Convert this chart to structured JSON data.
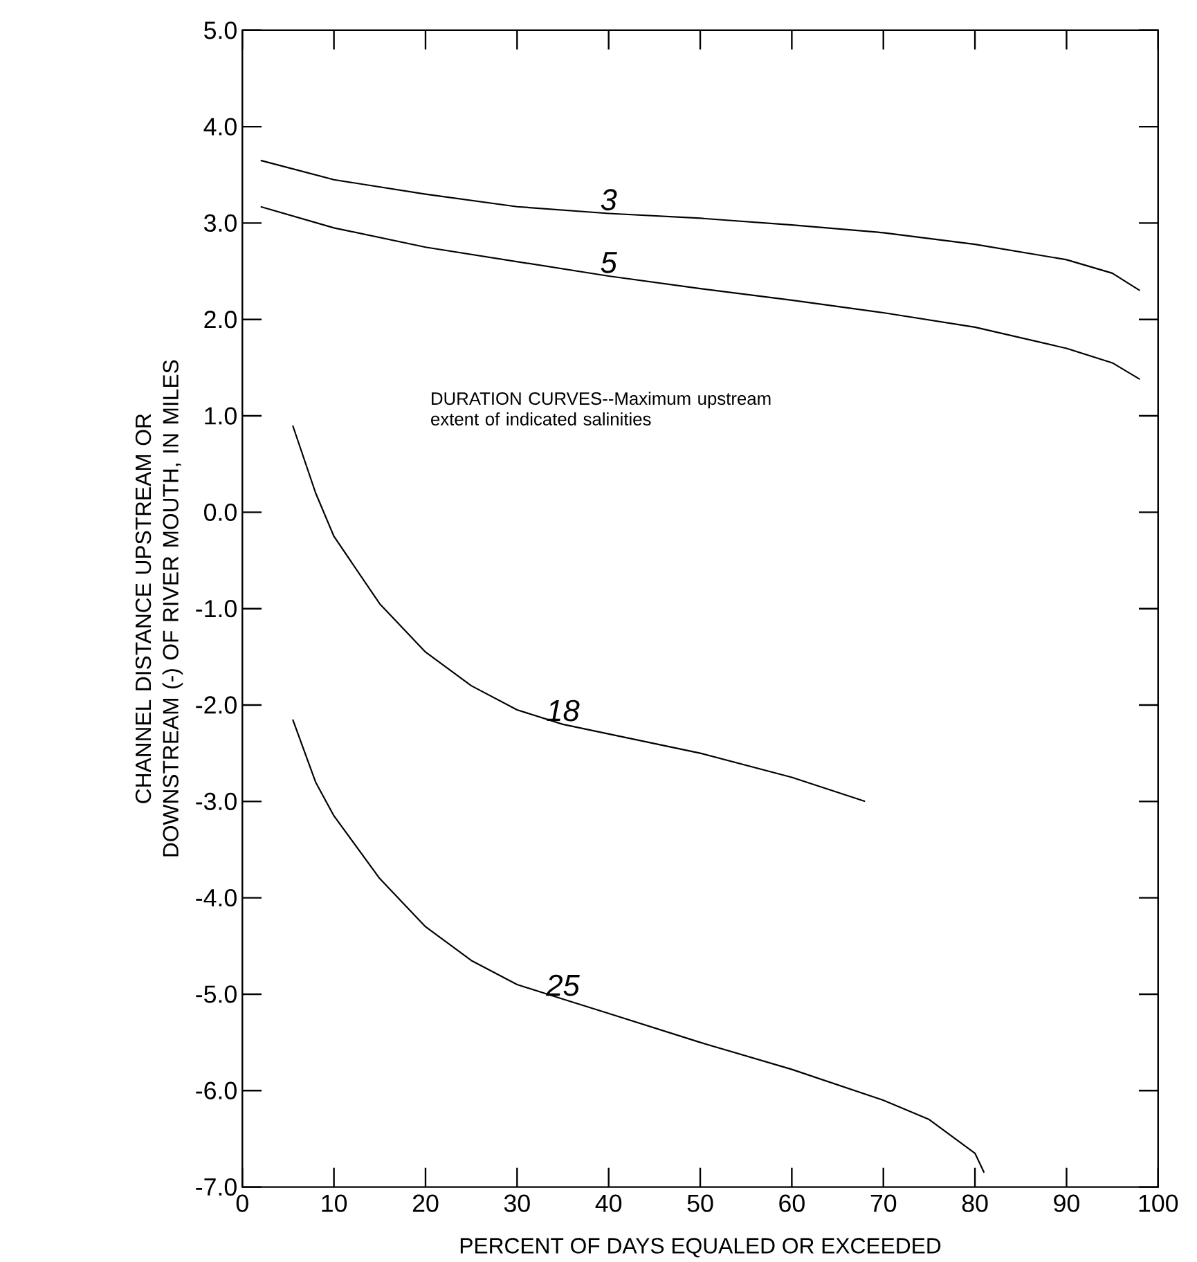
{
  "chart_data": {
    "type": "line",
    "xlabel": "PERCENT OF DAYS EQUALED OR EXCEEDED",
    "ylabel": "CHANNEL DISTANCE UPSTREAM OR DOWNSTREAM (-) OF RIVER MOUTH, IN MILES",
    "annotations": [
      "DURATION CURVES--Maximum upstream extent of indicated salinities"
    ],
    "xlim": [
      0,
      100
    ],
    "ylim": [
      -7,
      5
    ],
    "xticks": [
      0,
      10,
      20,
      30,
      40,
      50,
      60,
      70,
      80,
      90,
      100
    ],
    "yticks": [
      {
        "value": -7,
        "label": "-7.0"
      },
      {
        "value": -6,
        "label": "-6.0"
      },
      {
        "value": -5,
        "label": "-5.0"
      },
      {
        "value": -4,
        "label": "-4.0"
      },
      {
        "value": -3,
        "label": "-3.0"
      },
      {
        "value": -2,
        "label": "-2.0"
      },
      {
        "value": -1,
        "label": "-1.0"
      },
      {
        "value": 0,
        "label": "0.0"
      },
      {
        "value": 1,
        "label": "1.0"
      },
      {
        "value": 2,
        "label": "2.0"
      },
      {
        "value": 3,
        "label": "3.0"
      },
      {
        "value": 4,
        "label": "4.0"
      },
      {
        "value": 5,
        "label": "5.0"
      }
    ],
    "grid": false,
    "legend": false,
    "marker": "none",
    "line_style": "solid",
    "series": [
      {
        "name": "3",
        "color": "#000000",
        "x": [
          2,
          10,
          20,
          30,
          40,
          50,
          60,
          70,
          80,
          90,
          95,
          98
        ],
        "values": [
          3.65,
          3.45,
          3.3,
          3.17,
          3.1,
          3.05,
          2.98,
          2.9,
          2.78,
          2.62,
          2.48,
          2.3
        ]
      },
      {
        "name": "5",
        "color": "#000000",
        "x": [
          2,
          10,
          20,
          30,
          40,
          50,
          60,
          70,
          80,
          90,
          95,
          98
        ],
        "values": [
          3.17,
          2.95,
          2.75,
          2.6,
          2.45,
          2.32,
          2.2,
          2.07,
          1.92,
          1.7,
          1.55,
          1.38
        ]
      },
      {
        "name": "18",
        "color": "#000000",
        "x": [
          5.5,
          8,
          10,
          15,
          20,
          25,
          30,
          35,
          40,
          50,
          60,
          68
        ],
        "values": [
          0.9,
          0.2,
          -0.25,
          -0.95,
          -1.45,
          -1.8,
          -2.05,
          -2.2,
          -2.3,
          -2.5,
          -2.75,
          -3.0
        ]
      },
      {
        "name": "25",
        "color": "#000000",
        "x": [
          5.5,
          8,
          10,
          15,
          20,
          25,
          30,
          35,
          40,
          50,
          60,
          70,
          75,
          80,
          81
        ],
        "values": [
          -2.15,
          -2.8,
          -3.15,
          -3.8,
          -4.3,
          -4.65,
          -4.9,
          -5.05,
          -5.2,
          -5.5,
          -5.78,
          -6.1,
          -6.3,
          -6.65,
          -6.85
        ]
      }
    ]
  }
}
